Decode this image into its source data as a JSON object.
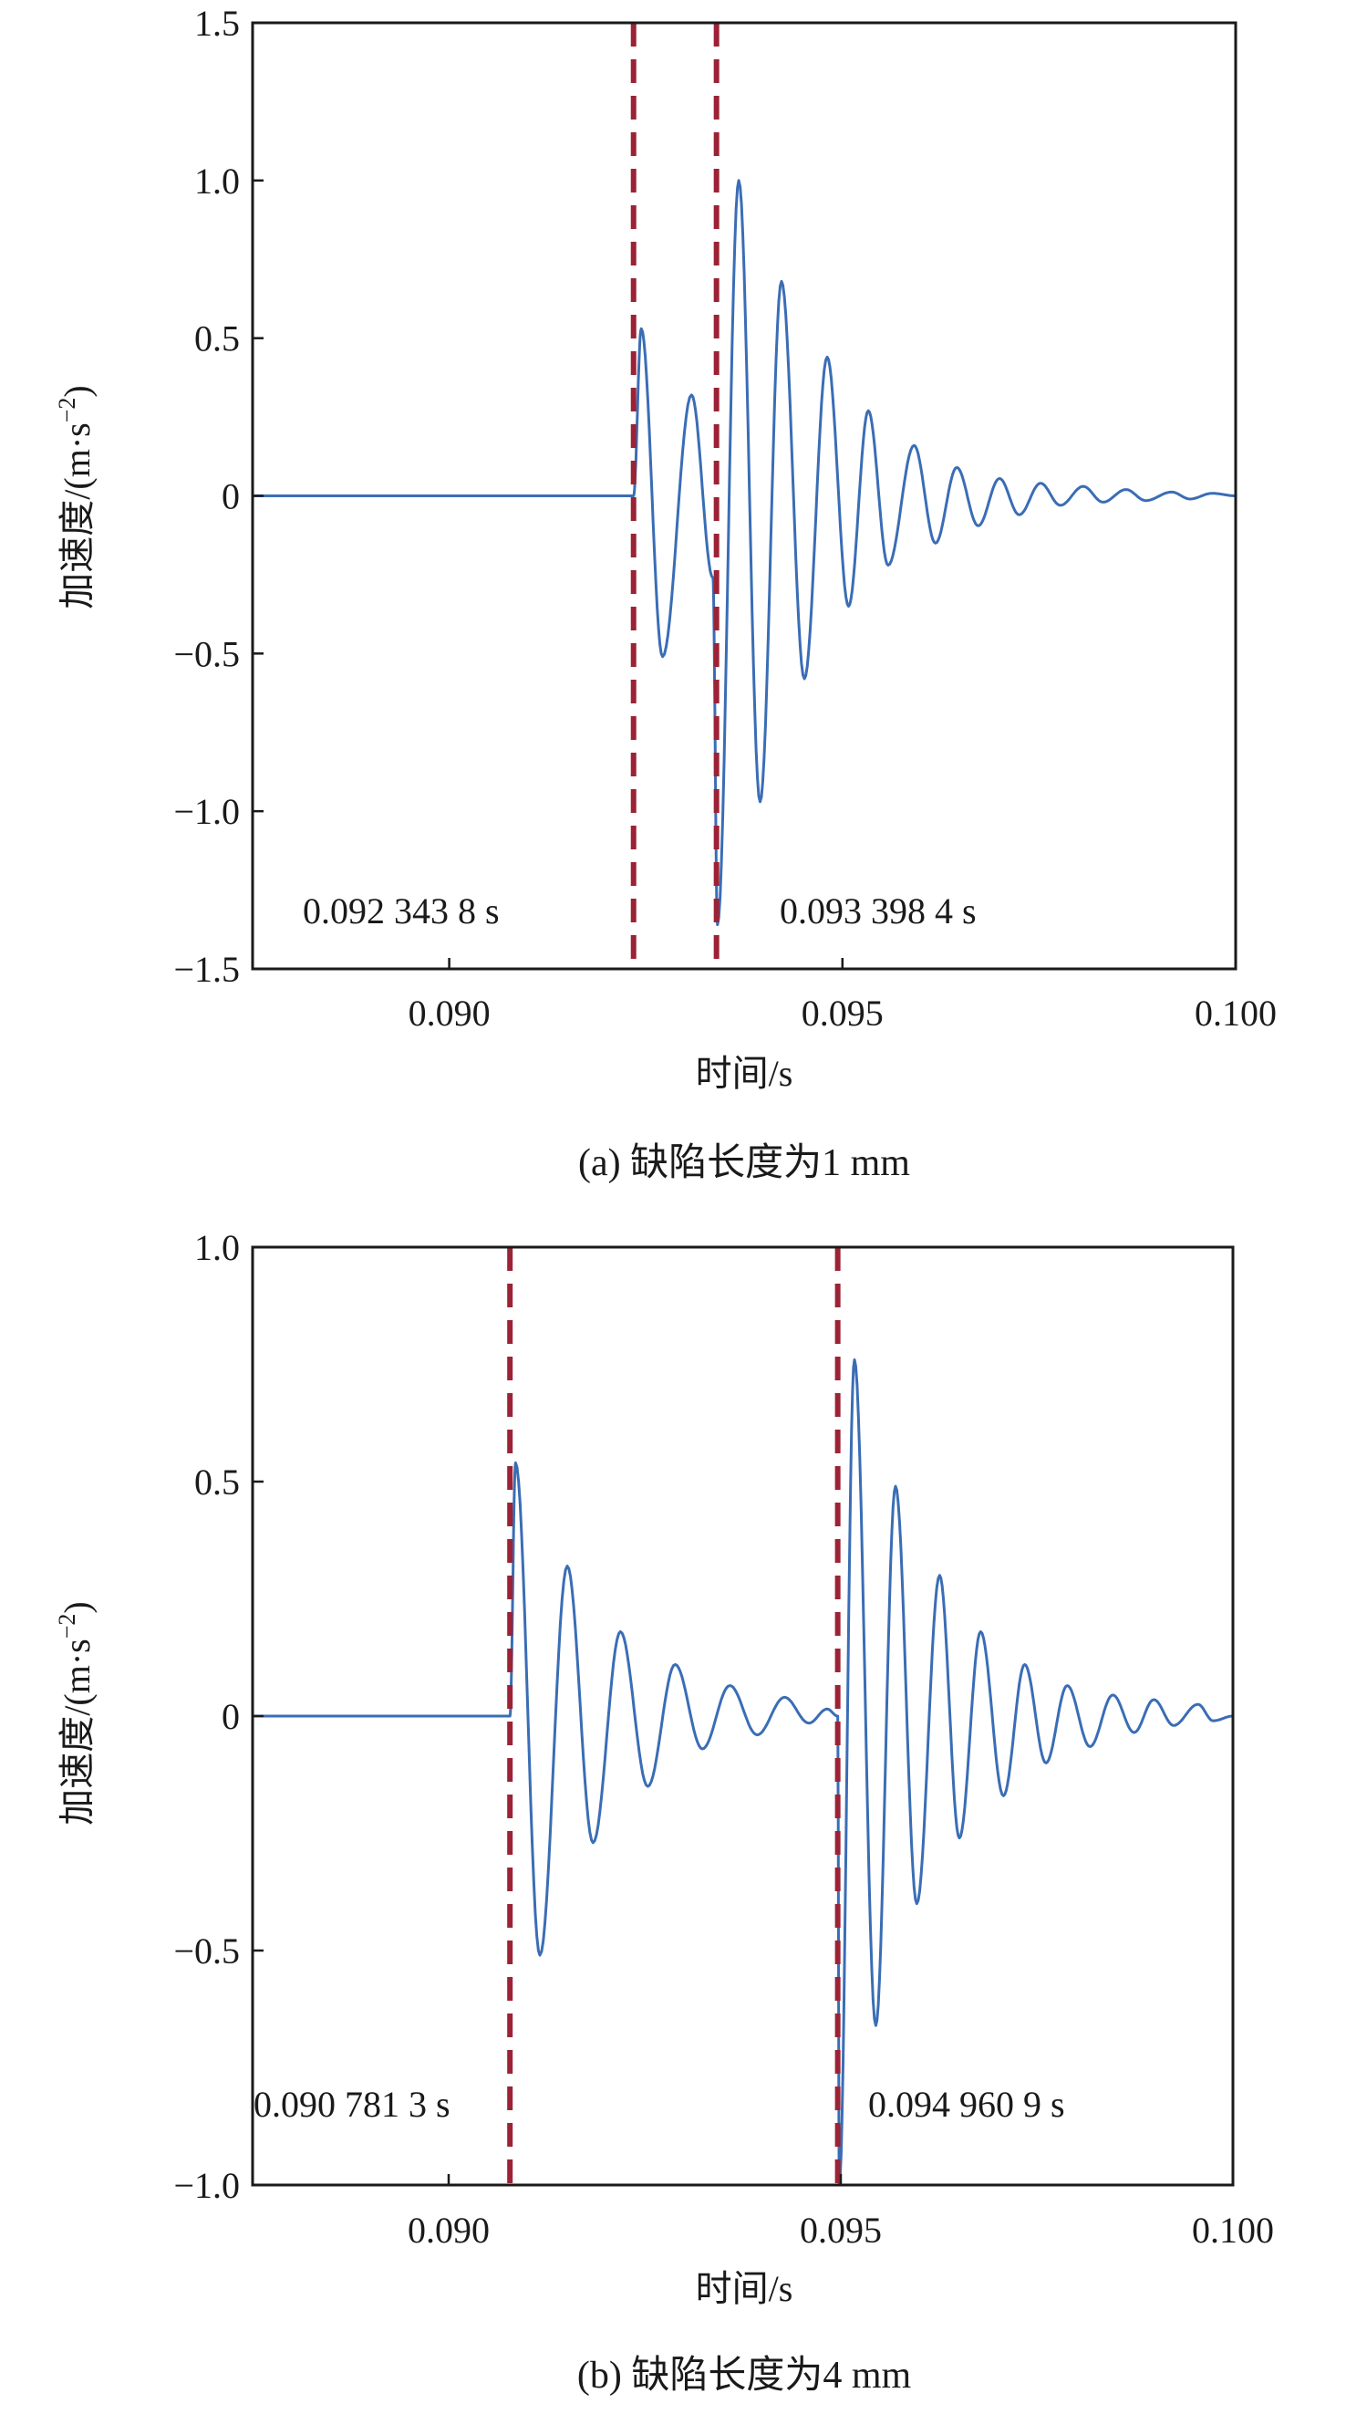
{
  "colors": {
    "signal": "#3a6db5",
    "marker": "#9b2335",
    "axis": "#1a1a1a"
  },
  "chart_data": [
    {
      "type": "line",
      "caption": "(a) 缺陷长度为1 mm",
      "xlabel": "时间/s",
      "ylabel": {
        "main": "加速度/(m·s",
        "sup": "−2",
        "close": ")"
      },
      "xlim": [
        0.0875,
        0.1
      ],
      "ylim": [
        -1.5,
        1.5
      ],
      "xticks": [
        {
          "v": 0.09,
          "label": "0.090"
        },
        {
          "v": 0.095,
          "label": "0.095"
        },
        {
          "v": 0.1,
          "label": "0.100"
        }
      ],
      "yticks": [
        {
          "v": -1.5,
          "label": "−1.5"
        },
        {
          "v": -1.0,
          "label": "−1.0"
        },
        {
          "v": -0.5,
          "label": "−0.5"
        },
        {
          "v": 0,
          "label": "0"
        },
        {
          "v": 0.5,
          "label": "0.5"
        },
        {
          "v": 1.0,
          "label": "1.0"
        },
        {
          "v": 1.5,
          "label": "1.5"
        }
      ],
      "markers": [
        {
          "x": 0.0923438,
          "label": "0.092 343 8 s"
        },
        {
          "x": 0.0933984,
          "label": "0.093 398 4 s"
        }
      ],
      "series": [
        {
          "name": "acceleration",
          "points": [
            [
              0.0875,
              0
            ],
            [
              0.0923438,
              0
            ],
            [
              0.092442,
              0.53
            ],
            [
              0.092713,
              -0.51
            ],
            [
              0.093081,
              0.32
            ],
            [
              0.093353,
              -0.26
            ],
            [
              0.093411,
              -1.36
            ],
            [
              0.093682,
              1.0
            ],
            [
              0.093953,
              -0.97
            ],
            [
              0.094225,
              0.68
            ],
            [
              0.094516,
              -0.58
            ],
            [
              0.094806,
              0.44
            ],
            [
              0.095078,
              -0.35
            ],
            [
              0.095329,
              0.27
            ],
            [
              0.095581,
              -0.22
            ],
            [
              0.095911,
              0.16
            ],
            [
              0.096183,
              -0.15
            ],
            [
              0.096454,
              0.09
            ],
            [
              0.096726,
              -0.095
            ],
            [
              0.096997,
              0.055
            ],
            [
              0.097248,
              -0.06
            ],
            [
              0.097519,
              0.04
            ],
            [
              0.097771,
              -0.03
            ],
            [
              0.098062,
              0.03
            ],
            [
              0.098314,
              -0.02
            ],
            [
              0.098605,
              0.02
            ],
            [
              0.098857,
              -0.015
            ],
            [
              0.099186,
              0.012
            ],
            [
              0.09942,
              -0.01
            ],
            [
              0.0997,
              0.008
            ],
            [
              0.1,
              0
            ]
          ]
        }
      ]
    },
    {
      "type": "line",
      "caption": "(b) 缺陷长度为4 mm",
      "xlabel": "时间/s",
      "ylabel": {
        "main": "加速度/(m·s",
        "sup": "−2",
        "close": ")"
      },
      "xlim": [
        0.0875,
        0.1
      ],
      "ylim": [
        -1.0,
        1.0
      ],
      "xticks": [
        {
          "v": 0.09,
          "label": "0.090"
        },
        {
          "v": 0.095,
          "label": "0.095"
        },
        {
          "v": 0.1,
          "label": "0.100"
        }
      ],
      "yticks": [
        {
          "v": -1.0,
          "label": "−1.0"
        },
        {
          "v": -0.5,
          "label": "−0.5"
        },
        {
          "v": 0,
          "label": "0"
        },
        {
          "v": 0.5,
          "label": "0.5"
        },
        {
          "v": 1.0,
          "label": "1.0"
        }
      ],
      "markers": [
        {
          "x": 0.0907813,
          "label": "0.090 781 3 s"
        },
        {
          "x": 0.0949609,
          "label": "0.094 960 9 s"
        }
      ],
      "series": [
        {
          "name": "acceleration",
          "points": [
            [
              0.0875,
              0
            ],
            [
              0.0907813,
              0
            ],
            [
              0.090853,
              0.54
            ],
            [
              0.091163,
              -0.51
            ],
            [
              0.091512,
              0.32
            ],
            [
              0.091841,
              -0.27
            ],
            [
              0.09219,
              0.18
            ],
            [
              0.092539,
              -0.15
            ],
            [
              0.092888,
              0.11
            ],
            [
              0.093236,
              -0.07
            ],
            [
              0.093585,
              0.065
            ],
            [
              0.093934,
              -0.04
            ],
            [
              0.094283,
              0.04
            ],
            [
              0.094593,
              -0.015
            ],
            [
              0.094826,
              0.015
            ],
            [
              0.0949609,
              0.0
            ],
            [
              0.09498,
              -1.0
            ],
            [
              0.095174,
              0.76
            ],
            [
              0.095446,
              -0.66
            ],
            [
              0.095698,
              0.49
            ],
            [
              0.095969,
              -0.4
            ],
            [
              0.09626,
              0.3
            ],
            [
              0.096512,
              -0.26
            ],
            [
              0.096783,
              0.18
            ],
            [
              0.097074,
              -0.17
            ],
            [
              0.097345,
              0.11
            ],
            [
              0.097616,
              -0.1
            ],
            [
              0.097887,
              0.065
            ],
            [
              0.098178,
              -0.065
            ],
            [
              0.098469,
              0.045
            ],
            [
              0.09874,
              -0.035
            ],
            [
              0.098992,
              0.035
            ],
            [
              0.099244,
              -0.02
            ],
            [
              0.099554,
              0.025
            ],
            [
              0.099748,
              -0.01
            ],
            [
              0.1,
              0
            ]
          ]
        }
      ]
    }
  ]
}
